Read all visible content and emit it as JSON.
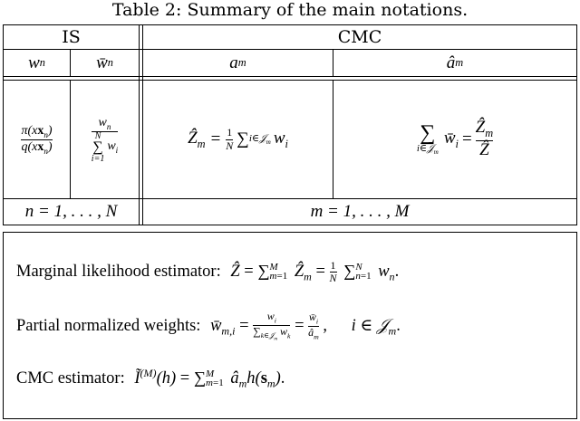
{
  "caption": "Table 2: Summary of the main notations.",
  "table": {
    "group_headers": {
      "is": "IS",
      "cmc": "CMC"
    },
    "column_headers": {
      "w_n": "w",
      "w_n_sub": "n",
      "wbar_n": "w̄",
      "wbar_n_sub": "n",
      "a_m": "a",
      "a_m_sub": "m",
      "ahat_m": "â",
      "ahat_m_sub": "m"
    },
    "formulas": {
      "w_n_num": "π(x",
      "w_n_den": "q(x",
      "wbar_num": "w",
      "wbar_sum_top": "N",
      "wbar_sum_var": "i=1",
      "wbar_den_term": "w",
      "a_m_lhs": "Ẑ",
      "a_m_frac_num": "1",
      "a_m_frac_den": "N",
      "a_m_sum_sub": "i∈𝒥",
      "ahat_sum_sub": "i∈𝒥",
      "ahat_term": "w̄",
      "ahat_frac_num": "Ẑ",
      "ahat_frac_den": "Ẑ"
    },
    "index_rows": {
      "is": "n = 1, . . . , N",
      "cmc": "m = 1, . . . , M"
    }
  },
  "box": {
    "line1_label": "Marginal likelihood estimator:",
    "line2_label": "Partial normalized weights:",
    "line3_label": "CMC estimator:"
  }
}
